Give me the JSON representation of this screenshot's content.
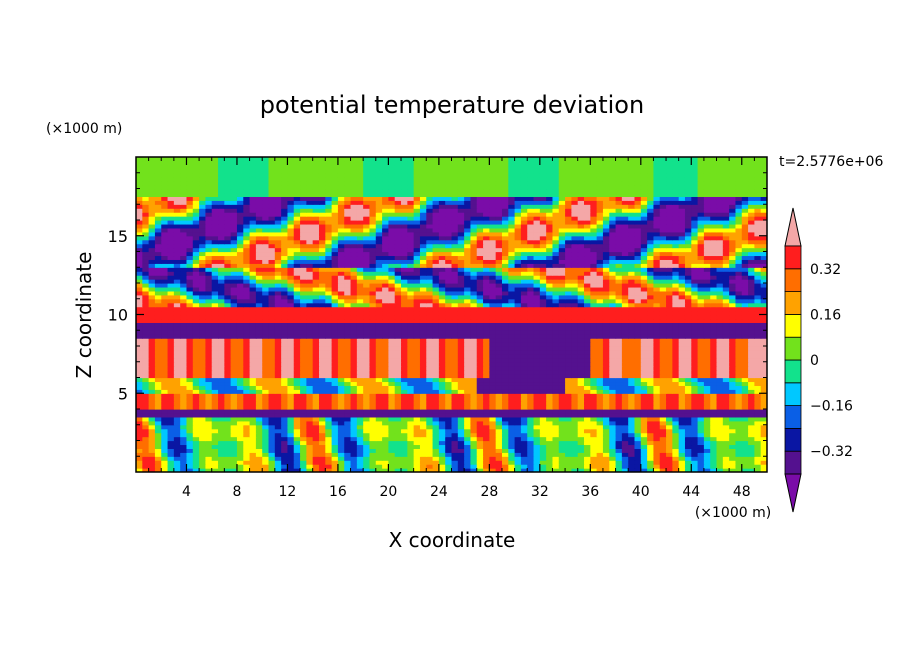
{
  "chart_data": {
    "type": "heatmap",
    "title": "potential temperature deviation",
    "xlabel": "X coordinate",
    "ylabel": "Z coordinate",
    "x_unit": "(×1000 m)",
    "y_unit": "(×1000 m)",
    "time_label": "t=2.5776e+06",
    "xlim": [
      0,
      50
    ],
    "ylim": [
      0,
      20
    ],
    "x_ticks": [
      4,
      8,
      12,
      16,
      20,
      24,
      28,
      32,
      36,
      40,
      44,
      48
    ],
    "y_ticks": [
      5,
      10,
      15
    ],
    "colorbar": {
      "levels": [
        -0.4,
        -0.32,
        -0.24,
        -0.16,
        -0.08,
        0,
        0.08,
        0.16,
        0.24,
        0.32,
        0.4
      ],
      "colors": [
        "#7a0ca8",
        "#54118f",
        "#0a16a3",
        "#0a5fe6",
        "#00c8ff",
        "#12e28c",
        "#72e21c",
        "#ffff00",
        "#ffa200",
        "#ff6e00",
        "#ff1e1e",
        "#f4a7a7"
      ],
      "tick_labels": [
        "0.32",
        "0.16",
        "0",
        "-0.16",
        "-0.32"
      ],
      "tick_values": [
        0.32,
        0.16,
        0,
        -0.16,
        -0.32
      ]
    }
  }
}
